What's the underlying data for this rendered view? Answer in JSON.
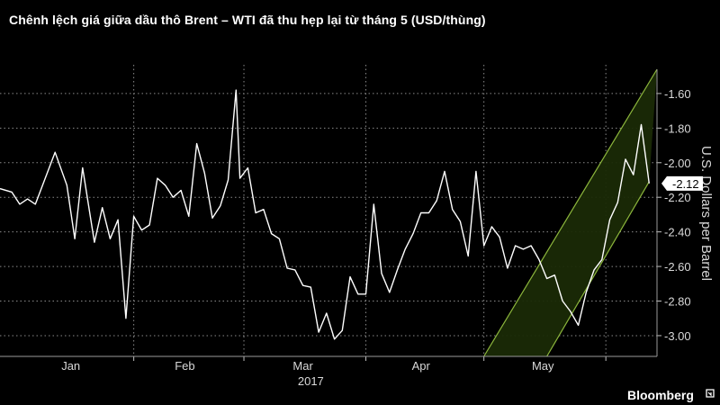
{
  "title": "Chênh lệch giá giữa dầu thô Brent – WTI đã thu hẹp lại từ tháng 5 (USD/thùng)",
  "brand": "Bloomberg",
  "colors": {
    "background": "#000000",
    "line": "#ffffff",
    "grid": "#8a8a8a",
    "channel_fill": "#1a2a06",
    "channel_edge": "#8cb63c",
    "last_value_box": "#ffffff"
  },
  "chart_data": {
    "type": "line",
    "title": "Chênh lệch giá giữa dầu thô Brent – WTI đã thu hẹp lại từ tháng 5 (USD/thùng)",
    "xlabel": "2017",
    "ylabel": "U.S. Dollars per Barrel",
    "x_tick_labels": [
      "Jan",
      "Feb",
      "Mar",
      "Apr",
      "May"
    ],
    "year_label": "2017",
    "x_range": [
      "2016-12-29",
      "2017-06-14"
    ],
    "ylim": [
      -3.12,
      -1.46
    ],
    "y_ticks": [
      -1.6,
      -1.8,
      -2.0,
      -2.2,
      -2.4,
      -2.6,
      -2.8,
      -3.0
    ],
    "y_tick_labels": [
      "-1.60",
      "-1.80",
      "-2.00",
      "-2.20",
      "-2.40",
      "-2.60",
      "-2.80",
      "-3.00"
    ],
    "grid": true,
    "y_axis_side": "right",
    "last_value": -2.12,
    "last_value_label": "-2.12",
    "channel": {
      "lower": [
        [
          "2017-05-01",
          -3.12
        ],
        [
          "2017-06-12",
          -2.11
        ]
      ],
      "upper": [
        [
          "2017-05-17",
          -3.12
        ],
        [
          "2017-06-14",
          -1.46
        ]
      ]
    },
    "series": [
      {
        "x": [
          "2016-12-29",
          "2017-01-01",
          "2017-01-03",
          "2017-01-05",
          "2017-01-07",
          "2017-01-09",
          "2017-01-12",
          "2017-01-15",
          "2017-01-17",
          "2017-01-19",
          "2017-01-22",
          "2017-01-24",
          "2017-01-26",
          "2017-01-28",
          "2017-01-30",
          "2017-02-01",
          "2017-02-03",
          "2017-02-05",
          "2017-02-07",
          "2017-02-09",
          "2017-02-11",
          "2017-02-13",
          "2017-02-15",
          "2017-02-17",
          "2017-02-19",
          "2017-02-21",
          "2017-02-23",
          "2017-02-25",
          "2017-02-27",
          "2017-02-28",
          "2017-03-02",
          "2017-03-04",
          "2017-03-06",
          "2017-03-08",
          "2017-03-10",
          "2017-03-12",
          "2017-03-14",
          "2017-03-16",
          "2017-03-18",
          "2017-03-20",
          "2017-03-22",
          "2017-03-24",
          "2017-03-26",
          "2017-03-28",
          "2017-03-30",
          "2017-04-01",
          "2017-04-03",
          "2017-04-05",
          "2017-04-07",
          "2017-04-09",
          "2017-04-11",
          "2017-04-13",
          "2017-04-15",
          "2017-04-17",
          "2017-04-19",
          "2017-04-21",
          "2017-04-23",
          "2017-04-25",
          "2017-04-27",
          "2017-04-29",
          "2017-05-01",
          "2017-05-03",
          "2017-05-05",
          "2017-05-07",
          "2017-05-09",
          "2017-05-11",
          "2017-05-13",
          "2017-05-15",
          "2017-05-17",
          "2017-05-19",
          "2017-05-21",
          "2017-05-23",
          "2017-05-25",
          "2017-05-27",
          "2017-05-29",
          "2017-05-31",
          "2017-06-02",
          "2017-06-04",
          "2017-06-06",
          "2017-06-08",
          "2017-06-10",
          "2017-06-12"
        ],
        "y": [
          -2.15,
          -2.17,
          -2.24,
          -2.21,
          -2.24,
          -2.12,
          -1.94,
          -2.13,
          -2.44,
          -2.03,
          -2.46,
          -2.26,
          -2.44,
          -2.33,
          -2.9,
          -2.31,
          -2.39,
          -2.36,
          -2.09,
          -2.13,
          -2.2,
          -2.16,
          -2.31,
          -1.89,
          -2.06,
          -2.32,
          -2.25,
          -2.1,
          -1.58,
          -2.09,
          -2.03,
          -2.29,
          -2.27,
          -2.41,
          -2.44,
          -2.61,
          -2.62,
          -2.71,
          -2.72,
          -2.98,
          -2.87,
          -3.02,
          -2.97,
          -2.66,
          -2.76,
          -2.76,
          -2.24,
          -2.64,
          -2.75,
          -2.62,
          -2.5,
          -2.41,
          -2.29,
          -2.29,
          -2.22,
          -2.05,
          -2.27,
          -2.34,
          -2.54,
          -2.05,
          -2.48,
          -2.37,
          -2.43,
          -2.61,
          -2.48,
          -2.5,
          -2.48,
          -2.56,
          -2.67,
          -2.65,
          -2.8,
          -2.86,
          -2.94,
          -2.75,
          -2.62,
          -2.56,
          -2.33,
          -2.23,
          -1.98,
          -2.07,
          -1.78,
          -2.12
        ]
      }
    ]
  }
}
